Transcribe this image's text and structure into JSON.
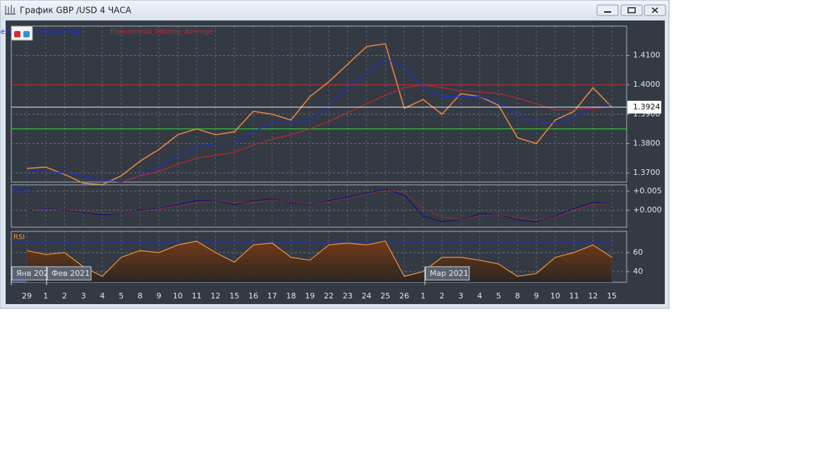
{
  "window": {
    "title": "График GBP /USD  4 ЧАСА",
    "month_labels": [
      "Янв 202",
      "Фев 2021",
      "Мар 2021"
    ]
  },
  "chart_data": [
    {
      "type": "line",
      "categories": [
        "29",
        "1",
        "2",
        "3",
        "4",
        "5",
        "8",
        "9",
        "10",
        "11",
        "12",
        "15",
        "16",
        "17",
        "18",
        "19",
        "22",
        "23",
        "24",
        "25",
        "26",
        "1",
        "2",
        "3",
        "4",
        "5",
        "8",
        "9",
        "10",
        "11",
        "12",
        "15"
      ],
      "ylim": [
        1.3669,
        1.42
      ],
      "yticks": [
        {
          "value": 1.37,
          "label": "1.3700"
        },
        {
          "value": 1.38,
          "label": "1.3800"
        },
        {
          "value": 1.39,
          "label": "1.3900"
        },
        {
          "value": 1.4,
          "label": "1.4000"
        },
        {
          "value": 1.41,
          "label": "1.4100"
        }
      ],
      "grid": true,
      "last_price": 1.3924,
      "levels": [
        {
          "value": 1.4,
          "color": "#c0282d"
        },
        {
          "value": 1.385,
          "color": "#2fd32f"
        }
      ],
      "series": [
        {
          "color": "#e8873a",
          "values": [
            1.3715,
            1.372,
            1.3695,
            1.3665,
            1.366,
            1.369,
            1.374,
            1.378,
            1.383,
            1.385,
            1.383,
            1.384,
            1.391,
            1.39,
            1.388,
            1.396,
            1.401,
            1.407,
            1.413,
            1.414,
            1.392,
            1.395,
            1.39,
            1.397,
            1.396,
            1.393,
            1.382,
            1.38,
            1.388,
            1.391,
            1.399,
            1.3924
          ]
        },
        {
          "name": "Exponential_Moving_Average",
          "color": "#1f2fd0",
          "values": [
            1.371,
            1.3705,
            1.37,
            1.369,
            1.3675,
            1.367,
            1.369,
            1.372,
            1.376,
            1.379,
            1.38,
            1.38,
            1.384,
            1.387,
            1.387,
            1.388,
            1.393,
            1.399,
            1.404,
            1.409,
            1.406,
            1.399,
            1.396,
            1.396,
            1.396,
            1.394,
            1.39,
            1.387,
            1.387,
            1.389,
            1.392,
            1.3935
          ]
        },
        {
          "name": "Exponential_Moving_Average",
          "color": "#c0282d",
          "values": [
            null,
            null,
            null,
            null,
            null,
            1.3668,
            1.369,
            1.3705,
            1.373,
            1.375,
            1.376,
            1.377,
            1.3795,
            1.3815,
            1.383,
            1.385,
            1.3875,
            1.3905,
            1.3935,
            1.3965,
            1.399,
            1.4,
            1.399,
            1.398,
            1.3975,
            1.397,
            1.3955,
            1.3935,
            1.3915,
            1.3915,
            1.392,
            1.3925
          ]
        }
      ]
    },
    {
      "type": "line",
      "title": "MACD",
      "ylim": [
        -0.00444,
        0.00667
      ],
      "yticks": [
        {
          "value": 0,
          "label": "+0.000"
        },
        {
          "value": 0.005,
          "label": "+0.005"
        }
      ],
      "grid": true,
      "series": [
        {
          "color": "#10147a",
          "values": [
            0,
            0.0005,
            0,
            -0.0005,
            -0.0012,
            -0.0008,
            0,
            0.0005,
            0.0015,
            0.0025,
            0.0025,
            0.0015,
            0.0025,
            0.003,
            0.002,
            0.0015,
            0.0025,
            0.0035,
            0.0045,
            0.0055,
            0.004,
            -0.0015,
            -0.003,
            -0.0025,
            -0.001,
            -0.001,
            -0.0025,
            -0.003,
            -0.0015,
            0.0005,
            0.002,
            0.0018
          ]
        },
        {
          "color": "#d0282d",
          "values": [
            0.0002,
            0.0003,
            0.0001,
            -0.0003,
            -0.0008,
            -0.0008,
            -0.0002,
            0.0004,
            0.0012,
            0.002,
            0.0025,
            0.002,
            0.002,
            0.0027,
            0.0022,
            0.0016,
            0.0022,
            0.0032,
            0.0042,
            0.0052,
            0.0048,
            0.0005,
            -0.0018,
            -0.0025,
            -0.0015,
            -0.001,
            -0.002,
            -0.0027,
            -0.0018,
            0,
            0.0015,
            0.0018
          ]
        }
      ]
    },
    {
      "type": "area",
      "title": "RSI",
      "ylim": [
        28.9,
        82.2
      ],
      "yticks": [
        40,
        60
      ],
      "grid": true,
      "levels": [
        {
          "value": 70,
          "color": "#2430d0"
        },
        {
          "value": 30,
          "color": "#2430d0"
        }
      ],
      "series": [
        {
          "color": "#f0963c",
          "values": [
            62,
            58,
            60,
            45,
            35,
            55,
            62,
            60,
            68,
            72,
            60,
            50,
            68,
            70,
            55,
            52,
            68,
            70,
            68,
            72,
            35,
            40,
            55,
            55,
            52,
            48,
            35,
            38,
            55,
            60,
            68,
            55
          ]
        }
      ]
    }
  ]
}
